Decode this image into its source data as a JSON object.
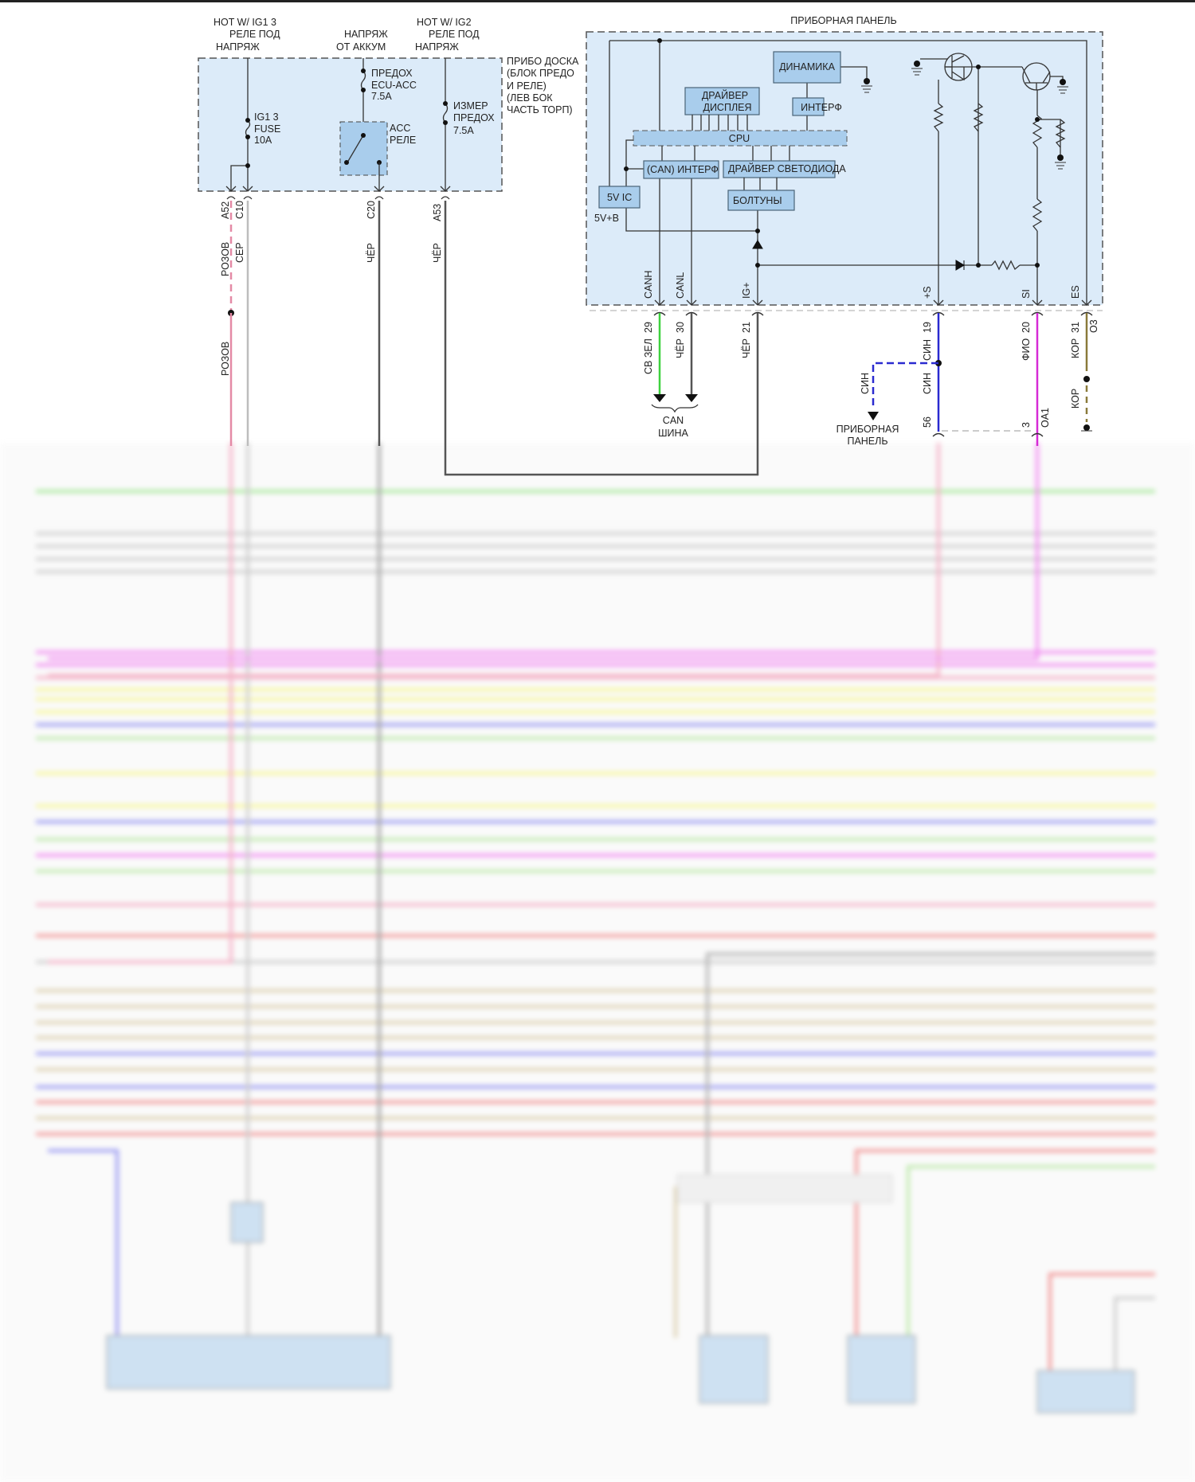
{
  "left_module": {
    "sources": [
      {
        "line1": "HOT W/ IG1 3",
        "line2": "РЕЛЕ ПОД",
        "line3": "НАПРЯЖ"
      },
      {
        "line1": "НАПРЯЖ",
        "line2": "ОТ АККУМ"
      },
      {
        "line1": "HOT W/ IG2",
        "line2": "РЕЛЕ ПОД",
        "line3": "НАПРЯЖ"
      }
    ],
    "box_label": [
      "ПРИБО ДОСКА",
      "(БЛОК ПРЕДО",
      "И РЕЛЕ)",
      "(ЛЕВ БОК",
      "ЧАСТЬ ТОРП)"
    ],
    "fuse_ig1": [
      "IG1 3",
      "FUSE",
      "10A"
    ],
    "fuse_ecu": [
      "ПРЕДОХ",
      "ECU-ACC",
      "7.5A"
    ],
    "fuse_gauge": [
      "ИЗМЕР",
      "ПРЕДОХ",
      "7.5A"
    ],
    "relay": [
      "ACC",
      "РЕЛЕ"
    ],
    "pins": [
      "A52",
      "C10",
      "C20",
      "A53"
    ],
    "wire_labels": {
      "a52": "РОЗОВ",
      "c10": "СЕР",
      "c20": "ЧЁР",
      "a53": "ЧЁР",
      "a52_lower": "РОЗОВ"
    }
  },
  "cluster": {
    "title": "ПРИБОРНАЯ ПАНЕЛЬ",
    "blocks": {
      "dynamics": "ДИНАМИКА",
      "display_driver": [
        "ДРАЙВЕР",
        "ДИСПЛЕЯ"
      ],
      "interface": "ИНТЕРФ",
      "cpu": "CPU",
      "can_interface": "(CAN) ИНТЕРФ",
      "led_driver": "ДРАЙВЕР СВЕТОДИОДА",
      "chimes": "БОЛТУНЫ",
      "ic5v": "5V IC",
      "supply": "5V+B"
    },
    "pins": [
      "CANH",
      "CANL",
      "IG+",
      "+S",
      "SI",
      "ES"
    ],
    "pin_numbers": [
      "29",
      "30",
      "21",
      "19",
      "20",
      "31"
    ],
    "connector_extra": "O3",
    "wire_labels": [
      "СВ ЗЕЛ",
      "ЧЁР",
      "ЧЁР",
      "СИН",
      "ФИО",
      "КОР"
    ],
    "can_bus": [
      "CAN",
      "ШИНА"
    ],
    "branch_label": "СИН",
    "lower_blue_label": "СИН",
    "lower_tan_label": "КОР",
    "branch_target": [
      "ПРИБОРНАЯ",
      "ПАНЕЛЬ"
    ],
    "lower_pins": [
      "56",
      "3"
    ],
    "lower_connector": "OA1"
  },
  "colors": {
    "module_fill": "#dcebf9",
    "block_fill": "#a9cdec",
    "pink": "#e48aa6",
    "gray": "#bdbdbd",
    "black": "#555555",
    "light_green": "#3fd13f",
    "blue": "#2a2ad0",
    "violet": "#d62ad6",
    "tan": "#8a7a3a"
  },
  "harness": {
    "wire_colors": [
      "#9de58f",
      "#c8c8c8",
      "#c8c8c8",
      "#c8c8c8",
      "#c8c8c8",
      "#f07ff0",
      "#f07ff0",
      "#f3a9c0",
      "#f6f58a",
      "#f6f58a",
      "#f6f58a",
      "#8d8df0",
      "#b6e6a2",
      "#f6f58a",
      "#f6f58a",
      "#8d8df0",
      "#b6e6a2",
      "#f07ff0",
      "#b6e6a2",
      "#f3a9c0",
      "#f08a8a",
      "#c8c8c8",
      "#d8caa5",
      "#d8caa5",
      "#d8caa5",
      "#d8caa5",
      "#8d8df0",
      "#d8caa5",
      "#8d8df0",
      "#f08a8a",
      "#d8caa5",
      "#f08a8a"
    ]
  }
}
